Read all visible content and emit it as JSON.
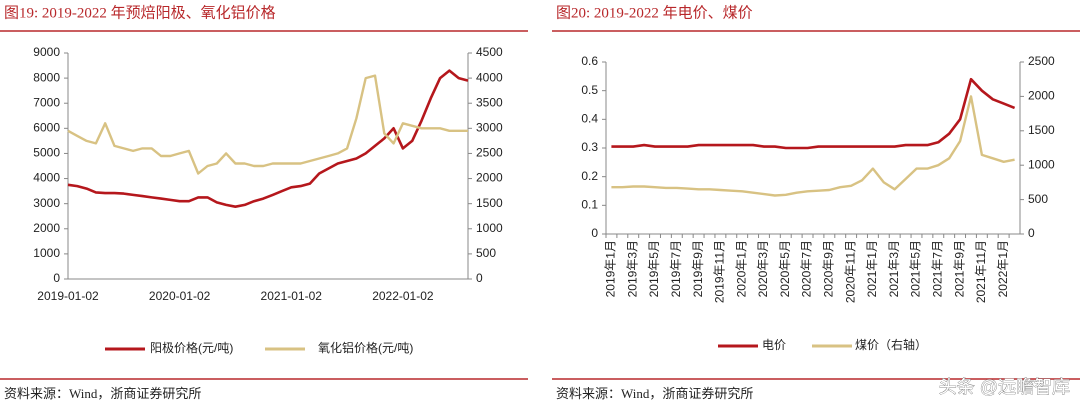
{
  "chart_data": [
    {
      "type": "line",
      "title": "图19:  2019-2022 年预焙阳极、氧化铝价格",
      "source": "资料来源：Wind，浙商证券研究所",
      "categories": [
        "2019-01-02",
        null,
        null,
        null,
        null,
        null,
        null,
        null,
        null,
        null,
        null,
        null,
        "2020-01-02",
        null,
        null,
        null,
        null,
        null,
        null,
        null,
        null,
        null,
        null,
        null,
        "2021-01-02",
        null,
        null,
        null,
        null,
        null,
        null,
        null,
        null,
        null,
        null,
        null,
        "2022-01-02",
        null,
        null,
        null,
        null,
        null,
        null,
        null
      ],
      "ylim": [
        0,
        9000
      ],
      "yticks": [
        0,
        1000,
        2000,
        3000,
        4000,
        5000,
        6000,
        7000,
        8000,
        9000
      ],
      "y2lim": [
        0,
        4500
      ],
      "y2ticks": [
        0,
        500,
        1000,
        1500,
        2000,
        2500,
        3000,
        3500,
        4000,
        4500
      ],
      "grid": false,
      "series": [
        {
          "name": "阳极价格(元/吨)",
          "color": "#b5171c",
          "values": [
            3750,
            3700,
            3600,
            3450,
            3420,
            3420,
            3400,
            3350,
            3300,
            3250,
            3200,
            3150,
            3100,
            3100,
            3250,
            3250,
            3050,
            2950,
            2880,
            2950,
            3100,
            3200,
            3350,
            3500,
            3650,
            3700,
            3800,
            4200,
            4400,
            4600,
            4700,
            4800,
            5000,
            5300,
            5600,
            6000,
            5200,
            5500,
            6300,
            7200,
            8000,
            8300,
            8000,
            7900
          ]
        },
        {
          "name": "氧化铝价格(元/吨)",
          "color": "#d8c283",
          "axis": "y2",
          "values": [
            2950,
            2850,
            2750,
            2700,
            3100,
            2650,
            2600,
            2550,
            2600,
            2600,
            2450,
            2450,
            2500,
            2550,
            2100,
            2250,
            2300,
            2500,
            2300,
            2300,
            2250,
            2250,
            2300,
            2300,
            2300,
            2300,
            2350,
            2400,
            2450,
            2500,
            2600,
            3200,
            4000,
            4050,
            2900,
            2700,
            3100,
            3050,
            3000,
            3000,
            3000,
            2950,
            2950,
            2950
          ]
        }
      ]
    },
    {
      "type": "line",
      "title": "图20:  2019-2022 年电价、煤价",
      "source": "资料来源：Wind，浙商证券研究所",
      "categories": [
        "2019年1月",
        null,
        "2019年3月",
        null,
        "2019年5月",
        null,
        "2019年7月",
        null,
        "2019年9月",
        null,
        "2019年11月",
        null,
        "2020年1月",
        null,
        "2020年3月",
        null,
        "2020年5月",
        null,
        "2020年7月",
        null,
        "2020年9月",
        null,
        "2020年11月",
        null,
        "2021年1月",
        null,
        "2021年3月",
        null,
        "2021年5月",
        null,
        "2021年7月",
        null,
        "2021年9月",
        null,
        "2021年11月",
        null,
        "2022年1月",
        null
      ],
      "ylim": [
        0,
        0.6
      ],
      "yticks": [
        0,
        0.1,
        0.2,
        0.3,
        0.4,
        0.5,
        0.6
      ],
      "y2lim": [
        0,
        2500
      ],
      "y2ticks": [
        0,
        500,
        1000,
        1500,
        2000,
        2500
      ],
      "grid": false,
      "series": [
        {
          "name": "电价",
          "color": "#b5171c",
          "values": [
            0.305,
            0.305,
            0.305,
            0.31,
            0.305,
            0.305,
            0.305,
            0.305,
            0.31,
            0.31,
            0.31,
            0.31,
            0.31,
            0.31,
            0.305,
            0.305,
            0.3,
            0.3,
            0.3,
            0.305,
            0.305,
            0.305,
            0.305,
            0.305,
            0.305,
            0.305,
            0.305,
            0.31,
            0.31,
            0.31,
            0.32,
            0.35,
            0.4,
            0.54,
            0.5,
            0.47,
            0.455,
            0.44
          ]
        },
        {
          "name": "煤价（右轴）",
          "color": "#d8c283",
          "axis": "y2",
          "values": [
            680,
            680,
            690,
            690,
            680,
            670,
            670,
            660,
            650,
            650,
            640,
            630,
            620,
            600,
            580,
            560,
            570,
            600,
            620,
            630,
            640,
            680,
            700,
            780,
            950,
            750,
            650,
            800,
            950,
            950,
            1000,
            1100,
            1350,
            2000,
            1150,
            1100,
            1050,
            1080
          ]
        }
      ]
    }
  ],
  "watermark": "头条 @远瞻智库"
}
